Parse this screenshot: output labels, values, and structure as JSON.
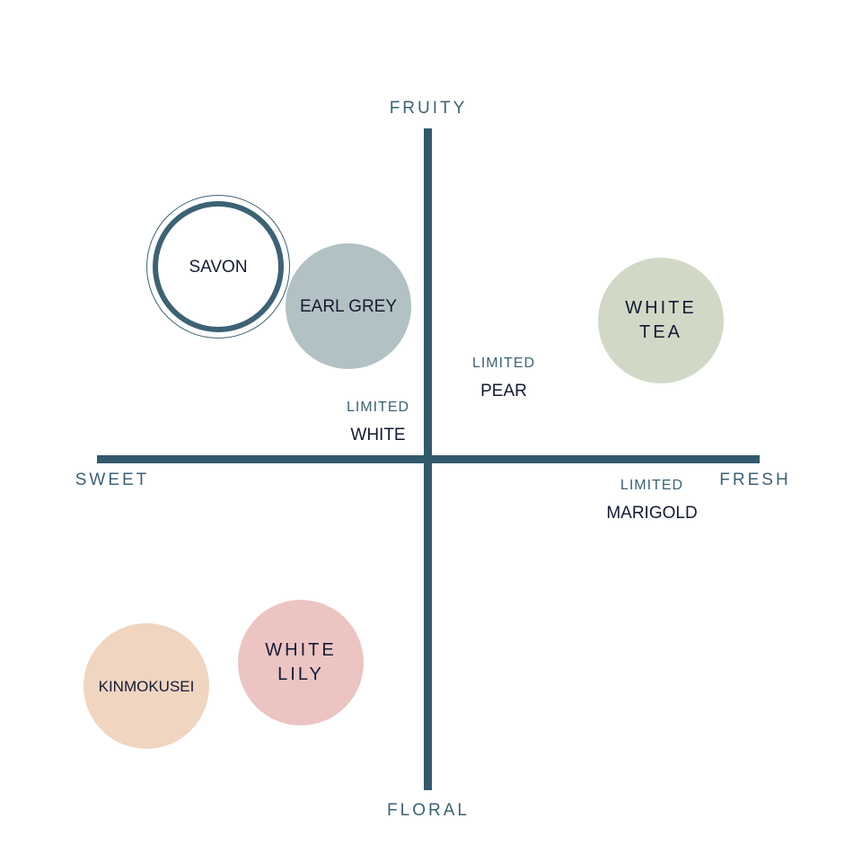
{
  "axes": {
    "top": "FRUITY",
    "bottom": "FLORAL",
    "left": "SWEET",
    "right": "FRESH",
    "color": "#325a6c"
  },
  "bubbles": [
    {
      "name": "SAVON",
      "style": "outlined-ring",
      "color": "#3c6274"
    },
    {
      "name": "EARL GREY",
      "color": "#b2c1c3"
    },
    {
      "line1": "WHITE",
      "line2": "TEA",
      "color": "#d1d9c6"
    },
    {
      "name": "KINMOKUSEI",
      "color": "#f0d5c0"
    },
    {
      "line1": "WHITE",
      "line2": "LILY",
      "color": "#ecc4c2"
    }
  ],
  "limited": [
    {
      "tag": "LIMITED",
      "name": "PEAR"
    },
    {
      "tag": "LIMITED",
      "name": "WHITE"
    },
    {
      "tag": "LIMITED",
      "name": "MARIGOLD"
    }
  ]
}
